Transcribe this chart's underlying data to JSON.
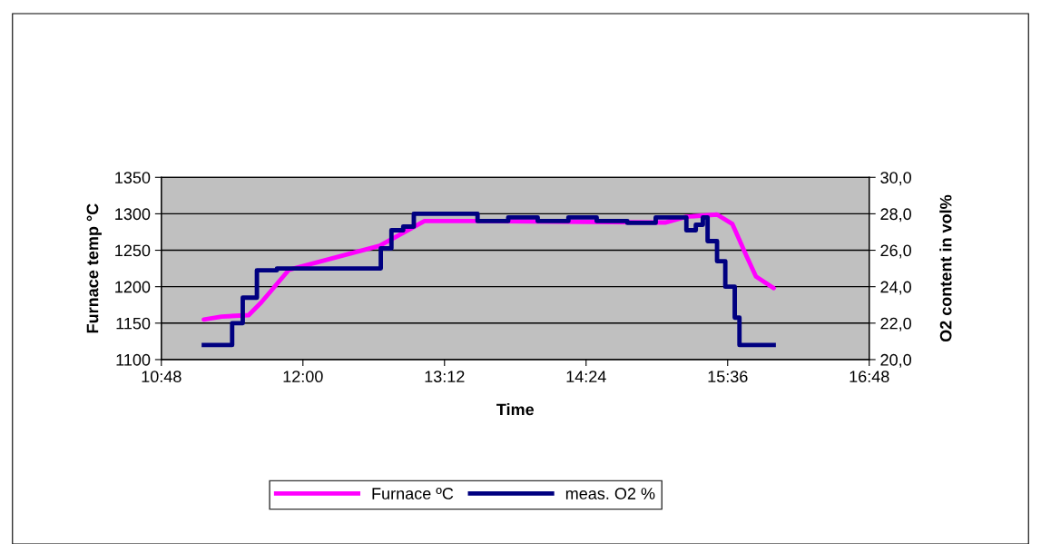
{
  "chart_data": {
    "type": "line",
    "xlabel": "Time",
    "ylabel": "Furnace temp °C",
    "y2label": "O2 content in vol%",
    "xlim": [
      10.8,
      16.8
    ],
    "xticks": [
      {
        "value": 10.8,
        "label": "10:48"
      },
      {
        "value": 12.0,
        "label": "12:00"
      },
      {
        "value": 13.2,
        "label": "13:12"
      },
      {
        "value": 14.4,
        "label": "14:24"
      },
      {
        "value": 15.6,
        "label": "15:36"
      },
      {
        "value": 16.8,
        "label": "16:48"
      }
    ],
    "ylim": [
      1100,
      1350
    ],
    "yticks": [
      1100,
      1150,
      1200,
      1250,
      1300,
      1350
    ],
    "y2lim": [
      20,
      30
    ],
    "y2ticks": [
      {
        "value": 20,
        "label": "20,0"
      },
      {
        "value": 22,
        "label": "22,0"
      },
      {
        "value": 24,
        "label": "24,0"
      },
      {
        "value": 26,
        "label": "26,0"
      },
      {
        "value": 28,
        "label": "28,0"
      },
      {
        "value": 30,
        "label": "30,0"
      }
    ],
    "grid": "y",
    "legend": "bottom",
    "marker": "none",
    "series": [
      {
        "name": "Furnace ºC",
        "color": "#ff00ff",
        "x": [
          11.16,
          11.31,
          11.54,
          11.65,
          11.88,
          12.65,
          13.03,
          13.45,
          15.07,
          15.25,
          15.51,
          15.64,
          15.76,
          15.84,
          15.99
        ],
        "values": [
          1155,
          1159,
          1161,
          1179,
          1223,
          1256,
          1290,
          1290,
          1288,
          1296,
          1299,
          1286,
          1242,
          1214,
          1198
        ]
      },
      {
        "name": "meas. O2 %",
        "type": "step",
        "axis": "y2",
        "color": "#000080",
        "x": [
          11.16,
          11.4,
          11.49,
          11.61,
          11.78,
          12.66,
          12.75,
          12.85,
          12.94,
          13.48,
          13.74,
          13.99,
          14.25,
          14.49,
          14.75,
          14.99,
          15.25,
          15.33,
          15.39,
          15.43,
          15.51,
          15.58,
          15.66,
          15.7,
          15.99
        ],
        "values": [
          20.8,
          22.0,
          23.4,
          24.9,
          25.0,
          26.1,
          27.1,
          27.3,
          28.0,
          27.6,
          27.8,
          27.6,
          27.8,
          27.6,
          27.5,
          27.8,
          27.1,
          27.4,
          27.8,
          26.5,
          25.4,
          24.0,
          22.3,
          20.8,
          20.8
        ]
      }
    ]
  }
}
